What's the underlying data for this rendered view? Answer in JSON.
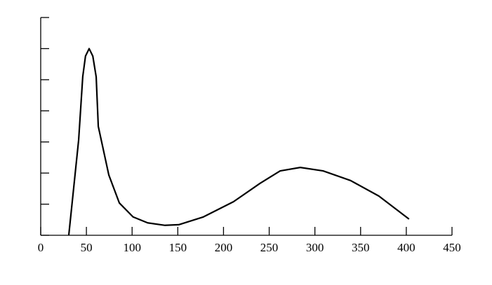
{
  "chart_data": {
    "type": "line",
    "x": [
      30.7,
      36,
      41.5,
      46,
      49,
      53,
      57,
      60.7,
      63,
      74.5,
      86,
      101,
      117,
      136,
      151,
      178,
      211,
      240,
      262,
      284,
      309,
      339,
      370,
      403
    ],
    "values": [
      0,
      1.5,
      3.06,
      5.1,
      5.76,
      6.0,
      5.76,
      5.09,
      3.5,
      1.94,
      1.04,
      0.59,
      0.4,
      0.32,
      0.34,
      0.59,
      1.08,
      1.67,
      2.07,
      2.18,
      2.07,
      1.76,
      1.26,
      0.52
    ],
    "color": "#000000",
    "xlim": [
      0,
      450
    ],
    "xticks": [
      0,
      50,
      100,
      150,
      200,
      250,
      300,
      350,
      400,
      450
    ],
    "ylim": [
      0,
      7
    ],
    "yticks": [
      0,
      1,
      2,
      3,
      4,
      5,
      6,
      7
    ]
  }
}
